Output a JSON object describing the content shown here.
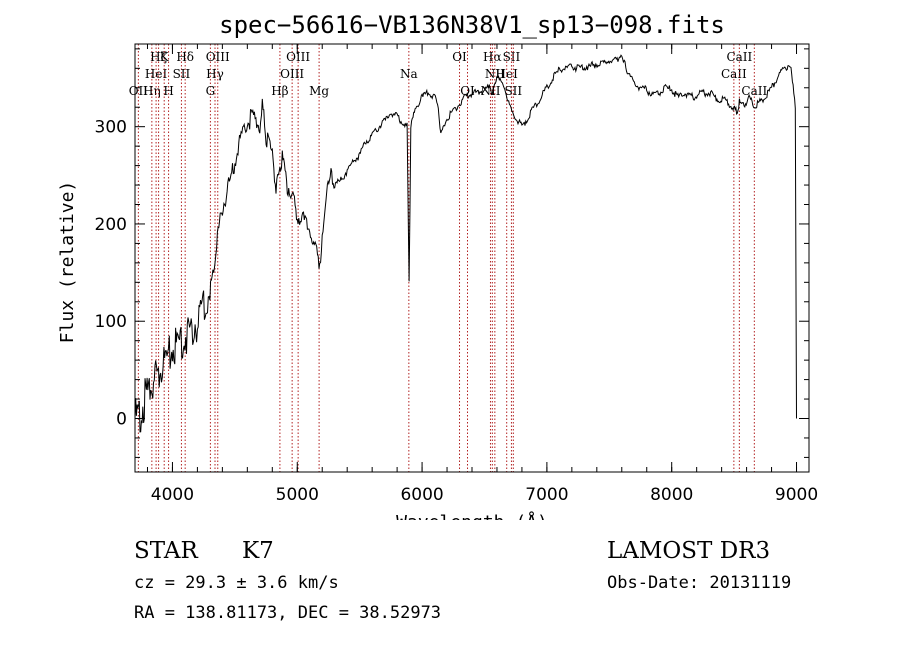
{
  "chart_data": {
    "type": "line",
    "title": "spec−56616−VB136N38V1_sp13−098.fits",
    "xlabel": "Wavelength (Å)",
    "ylabel": "Flux (relative)",
    "xlim": [
      3700,
      9100
    ],
    "ylim": [
      -55,
      385
    ],
    "xticks": [
      4000,
      5000,
      6000,
      7000,
      8000,
      9000
    ],
    "yticks": [
      0,
      100,
      200,
      300
    ],
    "grid": false,
    "line_color": "#000000",
    "marker_color": "#b22222",
    "series": [
      {
        "x": [
          3700,
          3740,
          3780,
          3820,
          3860,
          3900,
          3950,
          4000,
          4050,
          4100,
          4150,
          4200,
          4250,
          4300,
          4330,
          4360,
          4400,
          4450,
          4500,
          4550,
          4600,
          4650,
          4700,
          4720,
          4750,
          4800,
          4830,
          4861,
          4880,
          4920,
          4960,
          5000,
          5050,
          5100,
          5150,
          5180,
          5200,
          5230,
          5270,
          5300,
          5350,
          5400,
          5450,
          5500,
          5550,
          5600,
          5650,
          5700,
          5750,
          5800,
          5850,
          5880,
          5890,
          5896,
          5910,
          5950,
          6000,
          6050,
          6100,
          6130,
          6150,
          6200,
          6250,
          6300,
          6350,
          6400,
          6450,
          6500,
          6550,
          6563,
          6580,
          6600,
          6650,
          6700,
          6750,
          6800,
          6850,
          6900,
          6950,
          7000,
          7050,
          7100,
          7150,
          7200,
          7250,
          7300,
          7350,
          7400,
          7450,
          7500,
          7550,
          7600,
          7620,
          7650,
          7700,
          7750,
          7800,
          7850,
          7900,
          7950,
          8000,
          8050,
          8100,
          8150,
          8200,
          8250,
          8300,
          8350,
          8400,
          8450,
          8498,
          8520,
          8542,
          8580,
          8620,
          8662,
          8700,
          8750,
          8800,
          8850,
          8900,
          8950,
          8990,
          9000
        ],
        "y": [
          0,
          5,
          20,
          30,
          40,
          50,
          60,
          70,
          78,
          85,
          92,
          100,
          110,
          130,
          155,
          185,
          215,
          240,
          265,
          290,
          305,
          310,
          300,
          320,
          290,
          270,
          240,
          255,
          270,
          240,
          230,
          210,
          205,
          195,
          170,
          160,
          180,
          230,
          250,
          240,
          245,
          255,
          265,
          270,
          285,
          290,
          300,
          305,
          315,
          310,
          305,
          300,
          205,
          140,
          300,
          320,
          330,
          335,
          330,
          320,
          290,
          310,
          315,
          325,
          330,
          335,
          335,
          338,
          340,
          330,
          345,
          350,
          345,
          320,
          310,
          300,
          310,
          320,
          330,
          340,
          350,
          358,
          360,
          362,
          360,
          362,
          362,
          365,
          365,
          368,
          368,
          375,
          368,
          355,
          345,
          340,
          338,
          332,
          335,
          340,
          338,
          330,
          335,
          330,
          332,
          335,
          335,
          330,
          328,
          325,
          320,
          315,
          325,
          322,
          330,
          320,
          325,
          330,
          340,
          352,
          360,
          365,
          320,
          0
        ]
      }
    ],
    "line_markers": [
      {
        "wavelength": 3727,
        "label": "OII",
        "row": 2
      },
      {
        "wavelength": 3835,
        "label": "Hη",
        "row": 2
      },
      {
        "wavelength": 3869,
        "label": "HeI",
        "row": 1
      },
      {
        "wavelength": 3889,
        "label": "Hζ",
        "row": 0
      },
      {
        "wavelength": 3934,
        "label": "K",
        "row": 0
      },
      {
        "wavelength": 3969,
        "label": "H",
        "row": 2
      },
      {
        "wavelength": 4072,
        "label": "SII",
        "row": 1
      },
      {
        "wavelength": 4102,
        "label": "Hδ",
        "row": 0
      },
      {
        "wavelength": 4304,
        "label": "G",
        "row": 2
      },
      {
        "wavelength": 4341,
        "label": "Hγ",
        "row": 1
      },
      {
        "wavelength": 4363,
        "label": "OIII",
        "row": 0
      },
      {
        "wavelength": 4861,
        "label": "Hβ",
        "row": 2
      },
      {
        "wavelength": 4959,
        "label": "OIII",
        "row": 1
      },
      {
        "wavelength": 5007,
        "label": "OIII",
        "row": 0
      },
      {
        "wavelength": 5175,
        "label": "Mg",
        "row": 2
      },
      {
        "wavelength": 5894,
        "label": "Na",
        "row": 1
      },
      {
        "wavelength": 6300,
        "label": "OI",
        "row": 0
      },
      {
        "wavelength": 6364,
        "label": "OI",
        "row": 2
      },
      {
        "wavelength": 6548,
        "label": "NII",
        "row": 2
      },
      {
        "wavelength": 6563,
        "label": "Hα",
        "row": 0
      },
      {
        "wavelength": 6583,
        "label": "NII",
        "row": 1
      },
      {
        "wavelength": 6678,
        "label": "HeI",
        "row": 1
      },
      {
        "wavelength": 6716,
        "label": "SII",
        "row": 0
      },
      {
        "wavelength": 6731,
        "label": "SII",
        "row": 2
      },
      {
        "wavelength": 8498,
        "label": "CaII",
        "row": 1
      },
      {
        "wavelength": 8542,
        "label": "CaII",
        "row": 0
      },
      {
        "wavelength": 8662,
        "label": "CaII",
        "row": 2
      }
    ]
  },
  "info": {
    "object_class": "STAR",
    "subclass": "K7",
    "cz": "cz = 29.3 ± 3.6 km/s",
    "coords": "RA = 138.81173, DEC =  38.52973",
    "survey": "LAMOST DR3",
    "obs_date": "Obs-Date: 20131119"
  }
}
